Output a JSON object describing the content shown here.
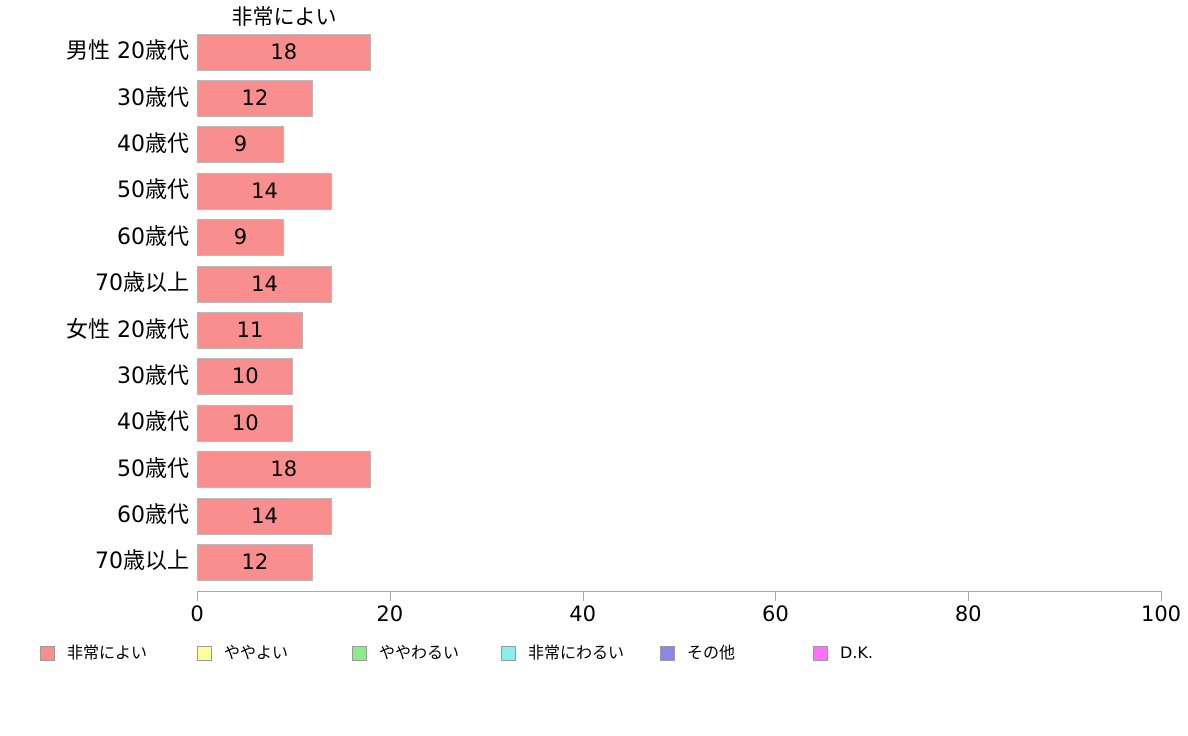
{
  "chart_data": {
    "type": "bar",
    "orientation": "horizontal",
    "title": "非常によい",
    "categories": [
      "男性 20歳代",
      "30歳代",
      "40歳代",
      "50歳代",
      "60歳代",
      "70歳以上",
      "女性 20歳代",
      "30歳代",
      "40歳代",
      "50歳代",
      "60歳代",
      "70歳以上"
    ],
    "values": [
      18,
      12,
      9,
      14,
      9,
      14,
      11,
      10,
      10,
      18,
      14,
      12
    ],
    "xlabel": "",
    "ylabel": "",
    "xlim": [
      0,
      100
    ],
    "x_ticks": [
      0,
      20,
      40,
      60,
      80,
      100
    ],
    "grid": "off",
    "data_labels": "inside-center",
    "bar_color": "#f98e8e",
    "bar_border_color": "#b9b9b9",
    "axis_color": "#aaaaaa",
    "legend_position": "bottom",
    "legend_items": [
      {
        "label": "非常によい",
        "color": "#f98e8e"
      },
      {
        "label": "ややよい",
        "color": "#ffff99"
      },
      {
        "label": "ややわるい",
        "color": "#8bec8b"
      },
      {
        "label": "非常にわるい",
        "color": "#8becec"
      },
      {
        "label": "その他",
        "color": "#8888e8"
      },
      {
        "label": "D.K.",
        "color": "#ff70ff"
      }
    ]
  }
}
